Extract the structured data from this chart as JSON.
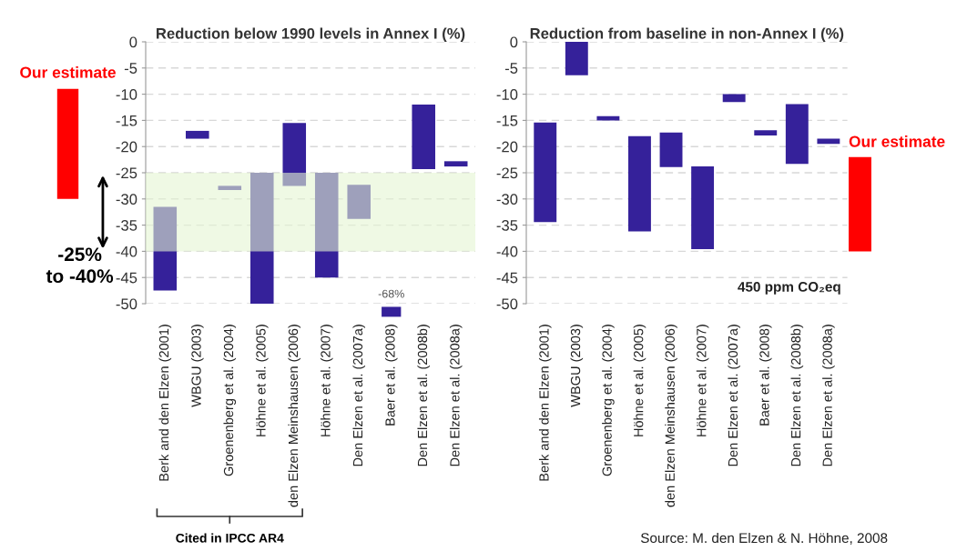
{
  "chart_data": [
    {
      "type": "bar",
      "categories": [
        null
      ],
      "base": [
        -9
      ],
      "values": [
        -21
      ],
      "color": "#ff0000",
      "ylim": [
        -50,
        0
      ],
      "tick_labels": false,
      "annotations": [
        "Our estimate"
      ]
    },
    {
      "type": "bar",
      "title": "Reduction below 1990 levels in Annex I (%)",
      "categories": [
        "Berk and den Elzen (2001)",
        "WBGU (2003)",
        "Groenenberg et al. (2004)",
        "Höhne et al. (2005)",
        "den Elzen Meinshausen (2006)",
        "Höhne et al. (2007)",
        "Den Elzen et al. (2007a)",
        "Baer et al. (2008)",
        "Den Elzen et al. (2008b)",
        "Den Elzen et al. (2008a)"
      ],
      "base": [
        -31.5,
        -17,
        -27.5,
        -25,
        -15.5,
        -25,
        -27.3,
        null,
        -12,
        -22.8
      ],
      "values": [
        -16,
        -1.5,
        -0.8,
        -25,
        -12,
        -20,
        -6.5,
        null,
        -12.3,
        -1
      ],
      "color": "#35219a",
      "ylim": [
        -50,
        0
      ],
      "yticks": [
        0,
        -5,
        -10,
        -15,
        -20,
        -25,
        -30,
        -35,
        -40,
        -45,
        -50
      ],
      "grid": "y",
      "bands": [
        {
          "axis": "y",
          "from": -25,
          "to": -40,
          "label": "-25%\nto -40%",
          "color": "#e4f5d2"
        }
      ],
      "annotations": [
        "-68%",
        "Cited in IPCC AR4"
      ]
    },
    {
      "type": "bar",
      "title": "Reduction from baseline in non-Annex I (%)",
      "categories": [
        "Berk and den Elzen (2001)",
        "WBGU (2003)",
        "Groenenberg et al. (2004)",
        "Höhne et al. (2005)",
        "den Elzen Meinshausen (2006)",
        "Höhne et al. (2007)",
        "Den Elzen et al. (2007a)",
        "Baer et al. (2008)",
        "Den Elzen et al. (2008b)",
        "Den Elzen et al. (2008a)",
        null
      ],
      "base": [
        -15.4,
        0,
        -14.2,
        -18,
        -17.3,
        -23.8,
        -10,
        -16.9,
        -11.9,
        -18.5,
        -22
      ],
      "values": [
        -19,
        -6.4,
        -0.8,
        -18.2,
        -6.6,
        -15.8,
        -1.5,
        -1,
        -11.4,
        -1,
        -18
      ],
      "colors": [
        "#35219a",
        "#35219a",
        "#35219a",
        "#35219a",
        "#35219a",
        "#35219a",
        "#35219a",
        "#35219a",
        "#35219a",
        "#35219a",
        "#ff0000"
      ],
      "ylim": [
        -50,
        0
      ],
      "yticks": [
        0,
        -5,
        -10,
        -15,
        -20,
        -25,
        -30,
        -35,
        -40,
        -45,
        -50
      ],
      "grid": "y",
      "annotations": [
        "450 ppm CO₂eq",
        "Source: M. den Elzen & N. Höhne, 2008",
        "Our estimate"
      ]
    }
  ]
}
